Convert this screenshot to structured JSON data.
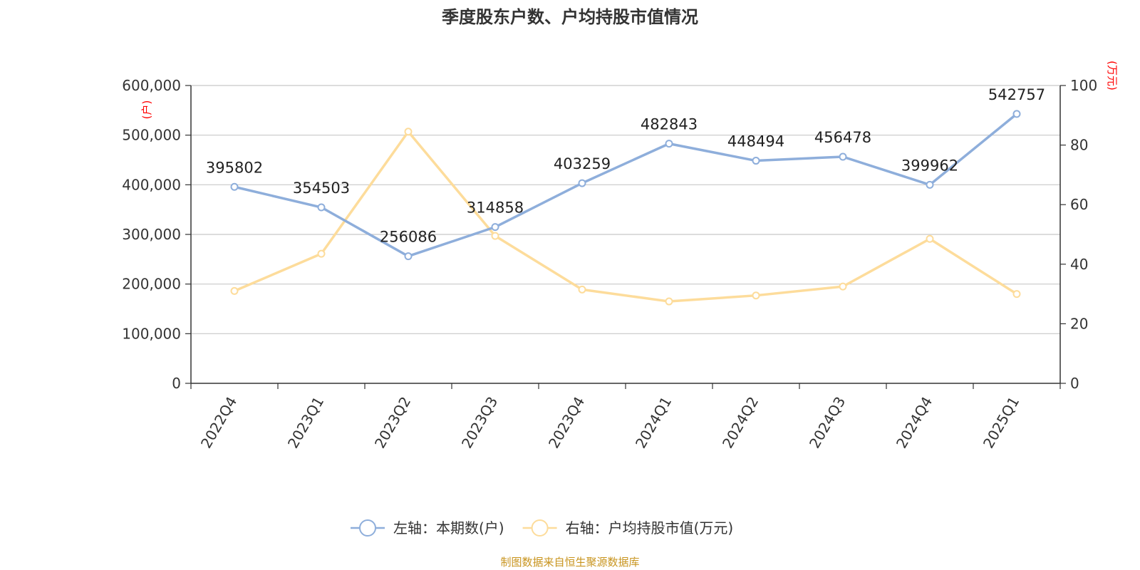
{
  "chart_data": {
    "type": "line",
    "title": "季度股东户数、户均持股市值情况",
    "categories": [
      "2022Q4",
      "2023Q1",
      "2023Q2",
      "2023Q3",
      "2023Q4",
      "2024Q1",
      "2024Q2",
      "2024Q3",
      "2024Q4",
      "2025Q1"
    ],
    "left_axis": {
      "unit": "(户)",
      "ylim": [
        0,
        600000
      ],
      "ticks": [
        0,
        100000,
        200000,
        300000,
        400000,
        500000,
        600000
      ]
    },
    "right_axis": {
      "unit": "(万元)",
      "ylim": [
        0,
        100
      ],
      "ticks": [
        0,
        20,
        40,
        60,
        80,
        100
      ]
    },
    "grid": true,
    "legend_position": "bottom",
    "series": [
      {
        "name": "左轴：本期数(户)",
        "axis": "left",
        "color": "#8eaedb",
        "show_labels": true,
        "values": [
          395802,
          354503,
          256086,
          314858,
          403259,
          482843,
          448494,
          456478,
          399962,
          542757
        ]
      },
      {
        "name": "右轴：户均持股市值(万元)",
        "axis": "right",
        "color": "#fddc9b",
        "show_labels": false,
        "values": [
          31,
          43.5,
          84.5,
          49.5,
          31.5,
          27.5,
          29.5,
          32.5,
          48.5,
          30
        ]
      }
    ]
  },
  "footer": {
    "source": "制图数据来自恒生聚源数据库"
  },
  "colors": {
    "unit_label": "#ff0000",
    "source_text": "#c8941e",
    "grid": "#c8c8c8",
    "axis": "#333333"
  }
}
